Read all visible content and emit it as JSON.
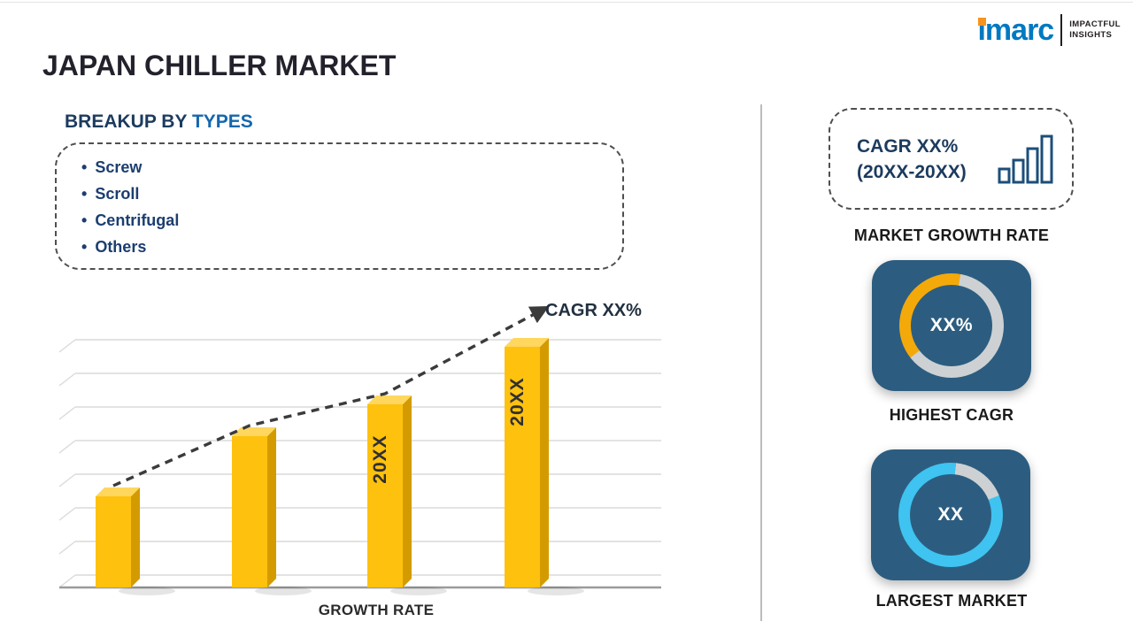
{
  "header": {
    "title": "JAPAN CHILLER MARKET"
  },
  "logo": {
    "brand": "imarc",
    "tagline": [
      "IMPACTFUL",
      "INSIGHTS"
    ]
  },
  "breakup": {
    "heading_prefix": "BREAKUP BY",
    "heading_accent": "TYPES",
    "items": [
      "Screw",
      "Scroll",
      "Centrifugal",
      "Others"
    ]
  },
  "chart_data": [
    {
      "type": "bar",
      "title": "Growth Rate",
      "xlabel": "GROWTH RATE",
      "ylabel": "",
      "bar_labels": [
        "",
        "",
        "20XX",
        "20XX"
      ],
      "values": [
        38,
        63,
        76,
        100
      ],
      "ylim": [
        0,
        100
      ],
      "trend_label": "CAGR XX%",
      "trend_style": "dashed-arrow",
      "trend_color": "#3B3B3B",
      "bar_color": "#FEC10E",
      "bar_side_color": "#D49B00",
      "bar_top_color": "#FFD75E",
      "gridline_count": 8,
      "grid": true,
      "legend": false
    },
    {
      "type": "donut",
      "value": "XX%",
      "caption": "HIGHEST CAGR",
      "accent_color": "#F4A90A",
      "ring_base_color": "#CDD1D3",
      "start_deg": 232,
      "sweep_deg": 138
    },
    {
      "type": "donut",
      "value": "XX",
      "caption": "LARGEST MARKET",
      "accent_color": "#3FC3F0",
      "ring_base_color": "#CDD1D3",
      "start_deg": 68,
      "sweep_deg": 298
    }
  ],
  "sidebar": {
    "growth_card": {
      "line1": "CAGR XX%",
      "line2": "(20XX-20XX)"
    },
    "growth_caption": "MARKET GROWTH RATE",
    "highest_cagr_caption": "HIGHEST CAGR",
    "largest_market_caption": "LARGEST MARKET"
  },
  "colors": {
    "title_text": "#23212B",
    "heading_navy": "#1C3B5E",
    "accent_blue": "#1467AD",
    "bullet_navy": "#1C3E70",
    "bar_yellow": "#FEC10E",
    "card_blue": "#2C5D80",
    "donut_ring_gray": "#CDD1D3",
    "logo_blue": "#0079C1",
    "logo_orange": "#F7941D"
  }
}
